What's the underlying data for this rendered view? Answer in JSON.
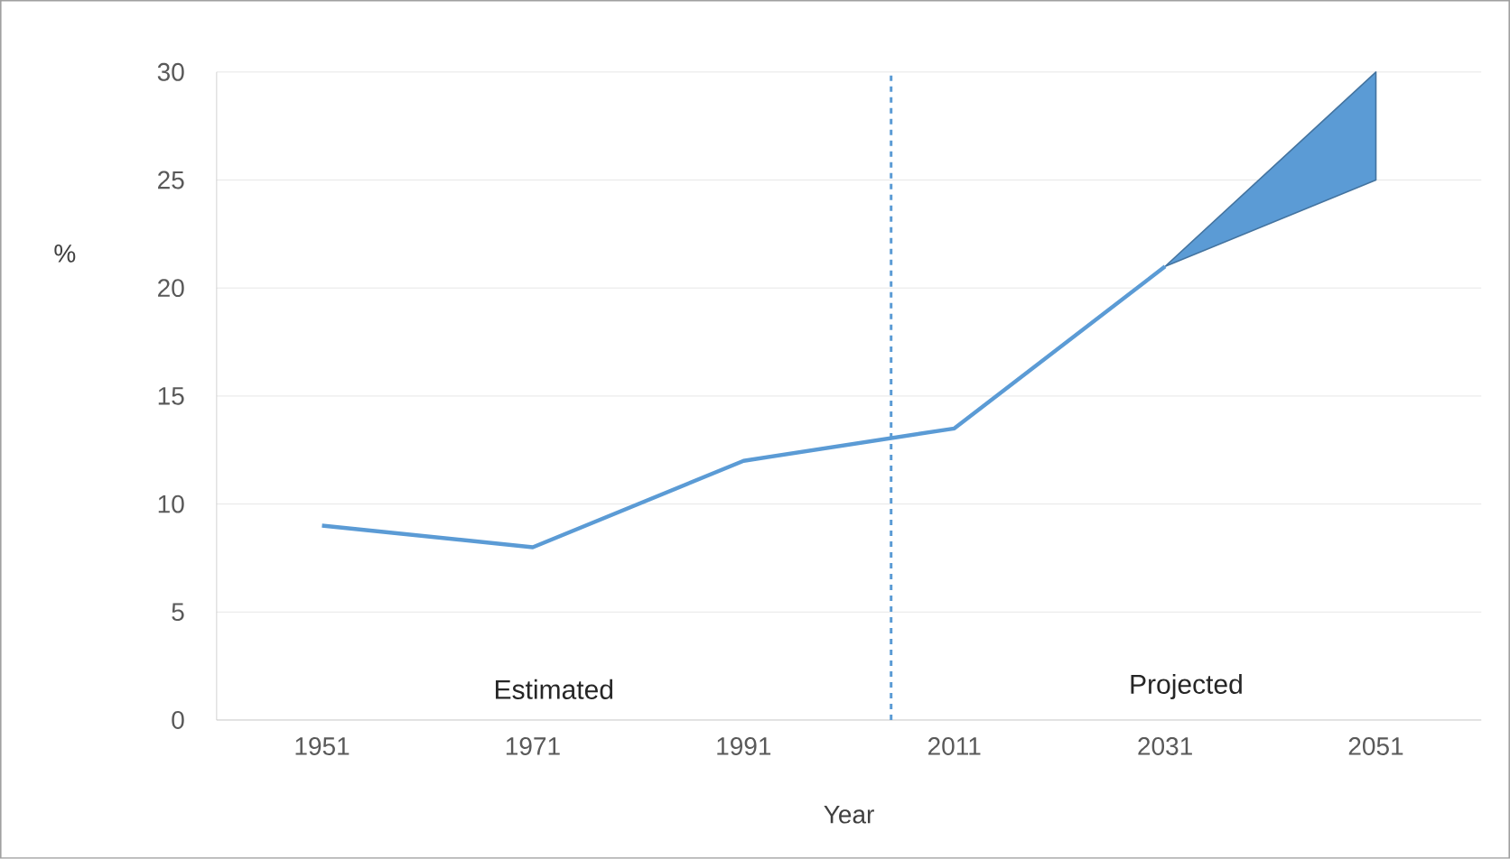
{
  "chart_data": {
    "type": "line",
    "xlabel": "Year",
    "ylabel": "%",
    "x": [
      1951,
      1971,
      1991,
      2011,
      2031,
      2051
    ],
    "series": [
      {
        "color": "#5b9bd5",
        "values": [
          9,
          8,
          12,
          13.5,
          21,
          null
        ],
        "lower": [
          null,
          null,
          null,
          null,
          21,
          25
        ],
        "upper": [
          null,
          null,
          null,
          null,
          21,
          30
        ]
      }
    ],
    "xlim": [
      1941,
      2061
    ],
    "xticks": [
      1951,
      1971,
      1991,
      2011,
      2031,
      2051
    ],
    "ylim": [
      0,
      30
    ],
    "yticks": [
      0,
      5,
      10,
      15,
      20,
      25,
      30
    ],
    "grid": "y",
    "line_style": "solid",
    "ref_lines": [
      {
        "axis": "x",
        "value": 2005,
        "color": "#5b9bd5",
        "line_style": "dashed"
      }
    ],
    "annotations": [
      "Estimated",
      "Projected"
    ]
  }
}
